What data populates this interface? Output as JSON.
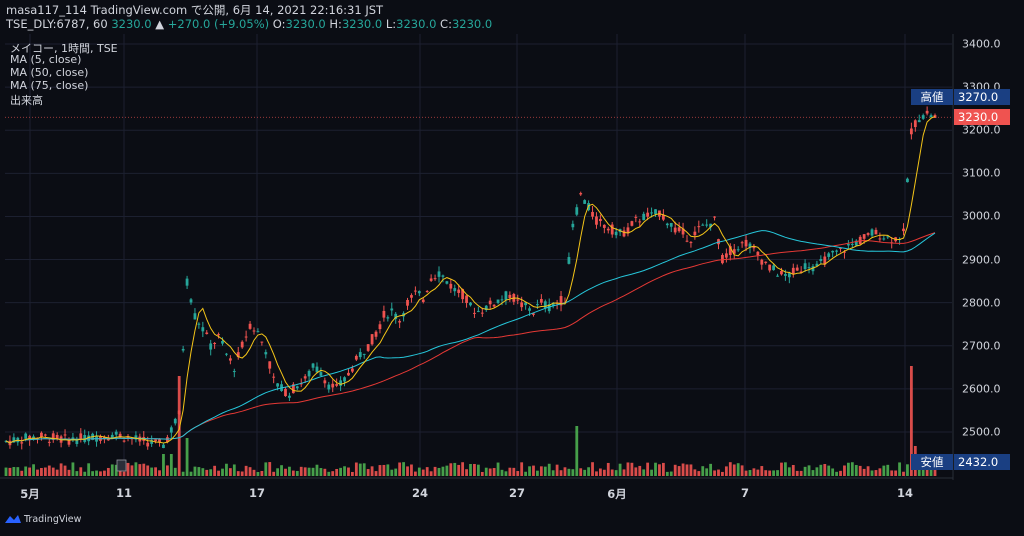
{
  "header": {
    "line1": "masa117_114 TradingView.com で公開, 6月 14, 2021 22:16:31 JST",
    "symbol": "TSE_DLY:6787, 60",
    "last": "3230.0",
    "change": "+270.0 (+9.05%)",
    "o_label": "O:",
    "o": "3230.0",
    "h_label": "H:",
    "h": "3230.0",
    "l_label": "L:",
    "l": "3230.0",
    "c_label": "C:",
    "c": "3230.0"
  },
  "legend": {
    "title": "メイコー, 1時間, TSE",
    "ma5": "MA (5, close)",
    "ma50": "MA (50, close)",
    "ma75": "MA (75, close)",
    "volume": "出来高"
  },
  "tags": {
    "high_label": "高値",
    "high_value": "3270.0",
    "last_value": "3230.0",
    "low_label": "安値",
    "low_value": "2432.0"
  },
  "footer": {
    "brand": "TradingView"
  },
  "colors": {
    "up": "#26a69a",
    "down": "#ef5350",
    "ma5": "#f5c518",
    "ma50": "#26c6da",
    "ma75": "#e53935",
    "vol_up": "#4caf50",
    "vol_down": "#ef5350",
    "tag_blue": "#1a3f82",
    "tag_red": "#ef5350"
  },
  "chart_data": {
    "type": "candlestick",
    "title": "メイコー, 1時間, TSE",
    "ylim": [
      2432,
      3420
    ],
    "y_ticks": [
      "3400.0",
      "3300.0",
      "3200.0",
      "3100.0",
      "3000.0",
      "2900.0",
      "2800.0",
      "2700.0",
      "2600.0",
      "2500.0"
    ],
    "x_ticks": [
      "5月",
      "11",
      "17",
      "24",
      "27",
      "6月",
      "7",
      "14"
    ],
    "grid": true,
    "high": 3270.0,
    "low": 2432.0,
    "last": 3230.0,
    "price_path": [
      [
        0,
        2478
      ],
      [
        8,
        2490
      ],
      [
        16,
        2482
      ],
      [
        22,
        2488
      ],
      [
        28,
        2495
      ],
      [
        34,
        2480
      ],
      [
        40,
        2470
      ],
      [
        44,
        2540
      ],
      [
        46,
        2850
      ],
      [
        48,
        2770
      ],
      [
        50,
        2740
      ],
      [
        52,
        2700
      ],
      [
        54,
        2720
      ],
      [
        56,
        2680
      ],
      [
        58,
        2650
      ],
      [
        60,
        2700
      ],
      [
        62,
        2750
      ],
      [
        64,
        2730
      ],
      [
        66,
        2690
      ],
      [
        68,
        2620
      ],
      [
        70,
        2600
      ],
      [
        72,
        2590
      ],
      [
        74,
        2610
      ],
      [
        76,
        2620
      ],
      [
        78,
        2650
      ],
      [
        80,
        2640
      ],
      [
        82,
        2610
      ],
      [
        84,
        2600
      ],
      [
        86,
        2620
      ],
      [
        88,
        2650
      ],
      [
        90,
        2680
      ],
      [
        92,
        2700
      ],
      [
        94,
        2730
      ],
      [
        96,
        2770
      ],
      [
        98,
        2780
      ],
      [
        100,
        2760
      ],
      [
        102,
        2800
      ],
      [
        104,
        2820
      ],
      [
        106,
        2810
      ],
      [
        108,
        2860
      ],
      [
        110,
        2870
      ],
      [
        112,
        2850
      ],
      [
        114,
        2830
      ],
      [
        116,
        2820
      ],
      [
        118,
        2790
      ],
      [
        120,
        2780
      ],
      [
        122,
        2790
      ],
      [
        124,
        2800
      ],
      [
        126,
        2810
      ],
      [
        128,
        2820
      ],
      [
        130,
        2800
      ],
      [
        132,
        2790
      ],
      [
        134,
        2780
      ],
      [
        136,
        2800
      ],
      [
        138,
        2790
      ],
      [
        140,
        2800
      ],
      [
        142,
        2810
      ],
      [
        144,
        2980
      ],
      [
        146,
        3050
      ],
      [
        148,
        3020
      ],
      [
        150,
        2990
      ],
      [
        152,
        2980
      ],
      [
        154,
        2970
      ],
      [
        156,
        2960
      ],
      [
        158,
        2970
      ],
      [
        160,
        2990
      ],
      [
        162,
        3000
      ],
      [
        164,
        3000
      ],
      [
        166,
        3010
      ],
      [
        168,
        2990
      ],
      [
        170,
        2970
      ],
      [
        172,
        2960
      ],
      [
        174,
        2950
      ],
      [
        176,
        2970
      ],
      [
        178,
        2980
      ],
      [
        180,
        2990
      ],
      [
        182,
        2900
      ],
      [
        184,
        2920
      ],
      [
        186,
        2930
      ],
      [
        188,
        2940
      ],
      [
        190,
        2920
      ],
      [
        192,
        2900
      ],
      [
        194,
        2880
      ],
      [
        196,
        2870
      ],
      [
        198,
        2860
      ],
      [
        200,
        2870
      ],
      [
        202,
        2880
      ],
      [
        204,
        2890
      ],
      [
        206,
        2880
      ],
      [
        208,
        2900
      ],
      [
        210,
        2910
      ],
      [
        212,
        2920
      ],
      [
        214,
        2930
      ],
      [
        216,
        2940
      ],
      [
        218,
        2950
      ],
      [
        220,
        2960
      ],
      [
        222,
        2960
      ],
      [
        224,
        2950
      ],
      [
        226,
        2950
      ],
      [
        228,
        2960
      ],
      [
        230,
        3200
      ],
      [
        232,
        3230
      ],
      [
        234,
        3240
      ],
      [
        236,
        3230
      ]
    ],
    "series": [
      {
        "name": "MA (5, close)"
      },
      {
        "name": "MA (50, close)"
      },
      {
        "name": "MA (75, close)"
      },
      {
        "name": "出来高"
      }
    ]
  }
}
